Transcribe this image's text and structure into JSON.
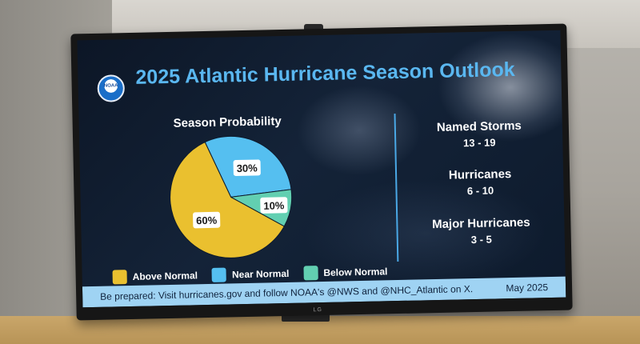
{
  "title": "2025 Atlantic Hurricane Season Outlook",
  "logo_text": "NOAA",
  "tv_brand": "LG",
  "colors": {
    "title": "#5ab7f0",
    "above_normal": "#eac02f",
    "near_normal": "#55bff0",
    "below_normal": "#62cfb1",
    "footer_bg": "#9fd3f3"
  },
  "chart_data": {
    "type": "pie",
    "title": "Season Probability",
    "categories": [
      "Above Normal",
      "Near Normal",
      "Below Normal"
    ],
    "values": [
      60,
      30,
      10
    ],
    "labels": [
      "60%",
      "30%",
      "10%"
    ],
    "legend_position": "bottom"
  },
  "stats": [
    {
      "label": "Named Storms",
      "value": "13 - 19"
    },
    {
      "label": "Hurricanes",
      "value": "6 - 10"
    },
    {
      "label": "Major Hurricanes",
      "value": "3 - 5"
    }
  ],
  "footer": {
    "message": "Be prepared: Visit hurricanes.gov and follow NOAA's @NWS and @NHC_Atlantic on X.",
    "date": "May 2025"
  }
}
